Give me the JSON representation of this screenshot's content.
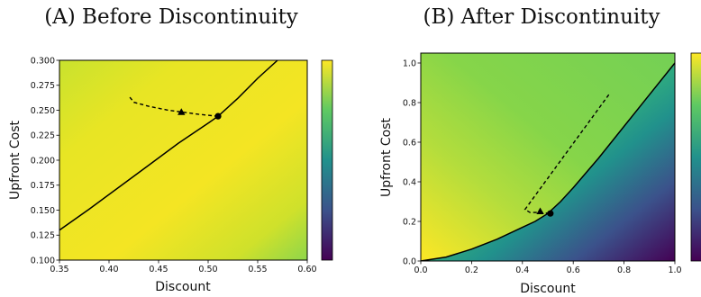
{
  "colors": {
    "colormap": [
      "#440154",
      "#3b528b",
      "#21918c",
      "#5ec962",
      "#fde725"
    ],
    "curve": "#000000"
  },
  "chart_data": [
    {
      "type": "heatmap",
      "title": "(A) Before Discontinuity",
      "xlabel": "Discount",
      "ylabel": "Upfront Cost",
      "xlim": [
        0.35,
        0.6
      ],
      "ylim": [
        0.1,
        0.3
      ],
      "xticks": [
        "0.35",
        "0.40",
        "0.45",
        "0.50",
        "0.55",
        "0.60"
      ],
      "yticks": [
        "0.100",
        "0.125",
        "0.150",
        "0.175",
        "0.200",
        "0.225",
        "0.250",
        "0.275",
        "0.300"
      ],
      "grid": false,
      "colorbar": true,
      "solid_curve": {
        "x": [
          0.35,
          0.38,
          0.41,
          0.44,
          0.47,
          0.5,
          0.51,
          0.53,
          0.55,
          0.57
        ],
        "y": [
          0.13,
          0.151,
          0.173,
          0.195,
          0.217,
          0.237,
          0.244,
          0.262,
          0.282,
          0.3
        ]
      },
      "dashed_curve": {
        "x": [
          0.421,
          0.425,
          0.44,
          0.46,
          0.475,
          0.49,
          0.5,
          0.51
        ],
        "y": [
          0.263,
          0.258,
          0.254,
          0.25,
          0.248,
          0.246,
          0.245,
          0.244
        ]
      },
      "triangle_marker": {
        "x": 0.473,
        "y": 0.248
      },
      "circle_marker": {
        "x": 0.51,
        "y": 0.244
      }
    },
    {
      "type": "heatmap",
      "title": "(B) After Discontinuity",
      "xlabel": "Discount",
      "ylabel": "Upfront Cost",
      "xlim": [
        0,
        1
      ],
      "ylim": [
        0,
        1.05
      ],
      "xticks": [
        "0.0",
        "0.2",
        "0.4",
        "0.6",
        "0.8",
        "1.0"
      ],
      "yticks": [
        "0.0",
        "0.2",
        "0.4",
        "0.6",
        "0.8",
        "1.0"
      ],
      "grid": false,
      "colorbar": true,
      "solid_curve": {
        "x": [
          0,
          0.1,
          0.2,
          0.3,
          0.4,
          0.45,
          0.5,
          0.55,
          0.6,
          0.7,
          0.8,
          0.9,
          1.0
        ],
        "y": [
          0,
          0.02,
          0.06,
          0.11,
          0.17,
          0.2,
          0.24,
          0.3,
          0.37,
          0.52,
          0.68,
          0.84,
          1.0
        ]
      },
      "dashed_curve": {
        "x": [
          0.74,
          0.41,
          0.43,
          0.47,
          0.51
        ],
        "y": [
          0.84,
          0.26,
          0.245,
          0.245,
          0.24
        ]
      },
      "triangle_marker": {
        "x": 0.47,
        "y": 0.25
      },
      "circle_marker": {
        "x": 0.51,
        "y": 0.24
      }
    }
  ]
}
